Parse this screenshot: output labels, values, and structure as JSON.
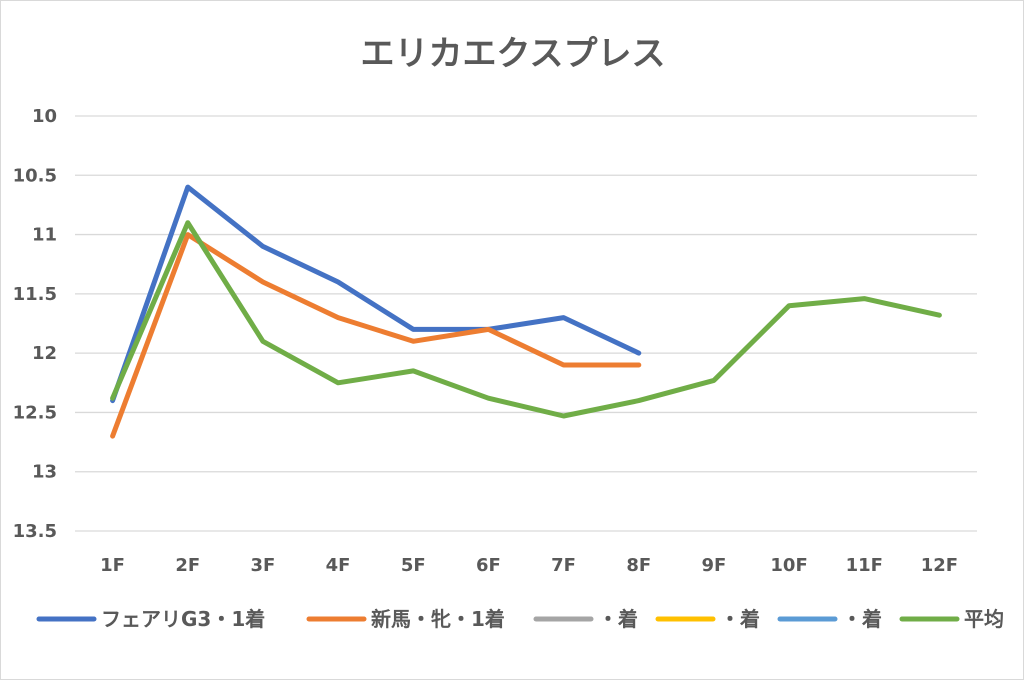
{
  "chart_data": {
    "type": "line",
    "title": "エリカエクスプレス",
    "xlabel": "",
    "ylabel": "",
    "categories": [
      "1F",
      "2F",
      "3F",
      "4F",
      "5F",
      "6F",
      "7F",
      "8F",
      "9F",
      "10F",
      "11F",
      "12F"
    ],
    "y_ticks": [
      "10",
      "10.5",
      "11",
      "11.5",
      "12",
      "12.5",
      "13",
      "13.5"
    ],
    "ylim": [
      10,
      13.5
    ],
    "y_reversed": true,
    "grid": true,
    "legend_position": "bottom",
    "series": [
      {
        "name": "フェアリG3・1着",
        "color": "#4472c4",
        "values": [
          12.4,
          10.6,
          11.1,
          11.4,
          11.8,
          11.8,
          11.7,
          12.0,
          null,
          null,
          null,
          null
        ]
      },
      {
        "name": "新馬・牝・1着",
        "color": "#ed7d31",
        "values": [
          12.7,
          11.0,
          11.4,
          11.7,
          11.9,
          11.8,
          12.1,
          12.1,
          null,
          null,
          null,
          null
        ]
      },
      {
        "name": "・着",
        "color": "#a5a5a5",
        "values": [
          null,
          null,
          null,
          null,
          null,
          null,
          null,
          null,
          null,
          null,
          null,
          null
        ]
      },
      {
        "name": "・着",
        "color": "#ffc000",
        "values": [
          null,
          null,
          null,
          null,
          null,
          null,
          null,
          null,
          null,
          null,
          null,
          null
        ]
      },
      {
        "name": "・着",
        "color": "#5b9bd5",
        "values": [
          null,
          null,
          null,
          null,
          null,
          null,
          null,
          null,
          null,
          null,
          null,
          null
        ]
      },
      {
        "name": "平均",
        "color": "#70ad47",
        "values": [
          12.38,
          10.9,
          11.9,
          12.25,
          12.15,
          12.38,
          12.53,
          12.4,
          12.23,
          11.6,
          11.54,
          11.68
        ]
      }
    ]
  }
}
